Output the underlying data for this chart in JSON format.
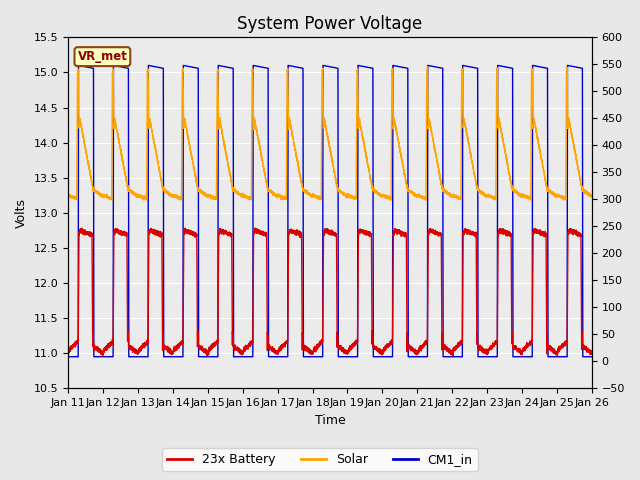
{
  "title": "System Power Voltage",
  "xlabel": "Time",
  "ylabel": "Volts",
  "ylim_left": [
    10.5,
    15.5
  ],
  "ylim_right": [
    -50,
    600
  ],
  "yticks_left": [
    10.5,
    11.0,
    11.5,
    12.0,
    12.5,
    13.0,
    13.5,
    14.0,
    14.5,
    15.0,
    15.5
  ],
  "yticks_right": [
    -50,
    0,
    50,
    100,
    150,
    200,
    250,
    300,
    350,
    400,
    450,
    500,
    550,
    600
  ],
  "xtick_labels": [
    "Jan 11",
    "Jan 12",
    "Jan 13",
    "Jan 14",
    "Jan 15",
    "Jan 16",
    "Jan 17",
    "Jan 18",
    "Jan 19",
    "Jan 20",
    "Jan 21",
    "Jan 22",
    "Jan 23",
    "Jan 24",
    "Jan 25",
    "Jan 26"
  ],
  "annotation_label": "VR_met",
  "legend_entries": [
    "23x Battery",
    "Solar",
    "CM1_in"
  ],
  "line_colors": [
    "#dd0000",
    "#ffa500",
    "#0000cc"
  ],
  "background_color": "#e8e8e8",
  "plot_bg_color": "#ebebeb",
  "title_fontsize": 12,
  "label_fontsize": 9,
  "tick_fontsize": 8
}
